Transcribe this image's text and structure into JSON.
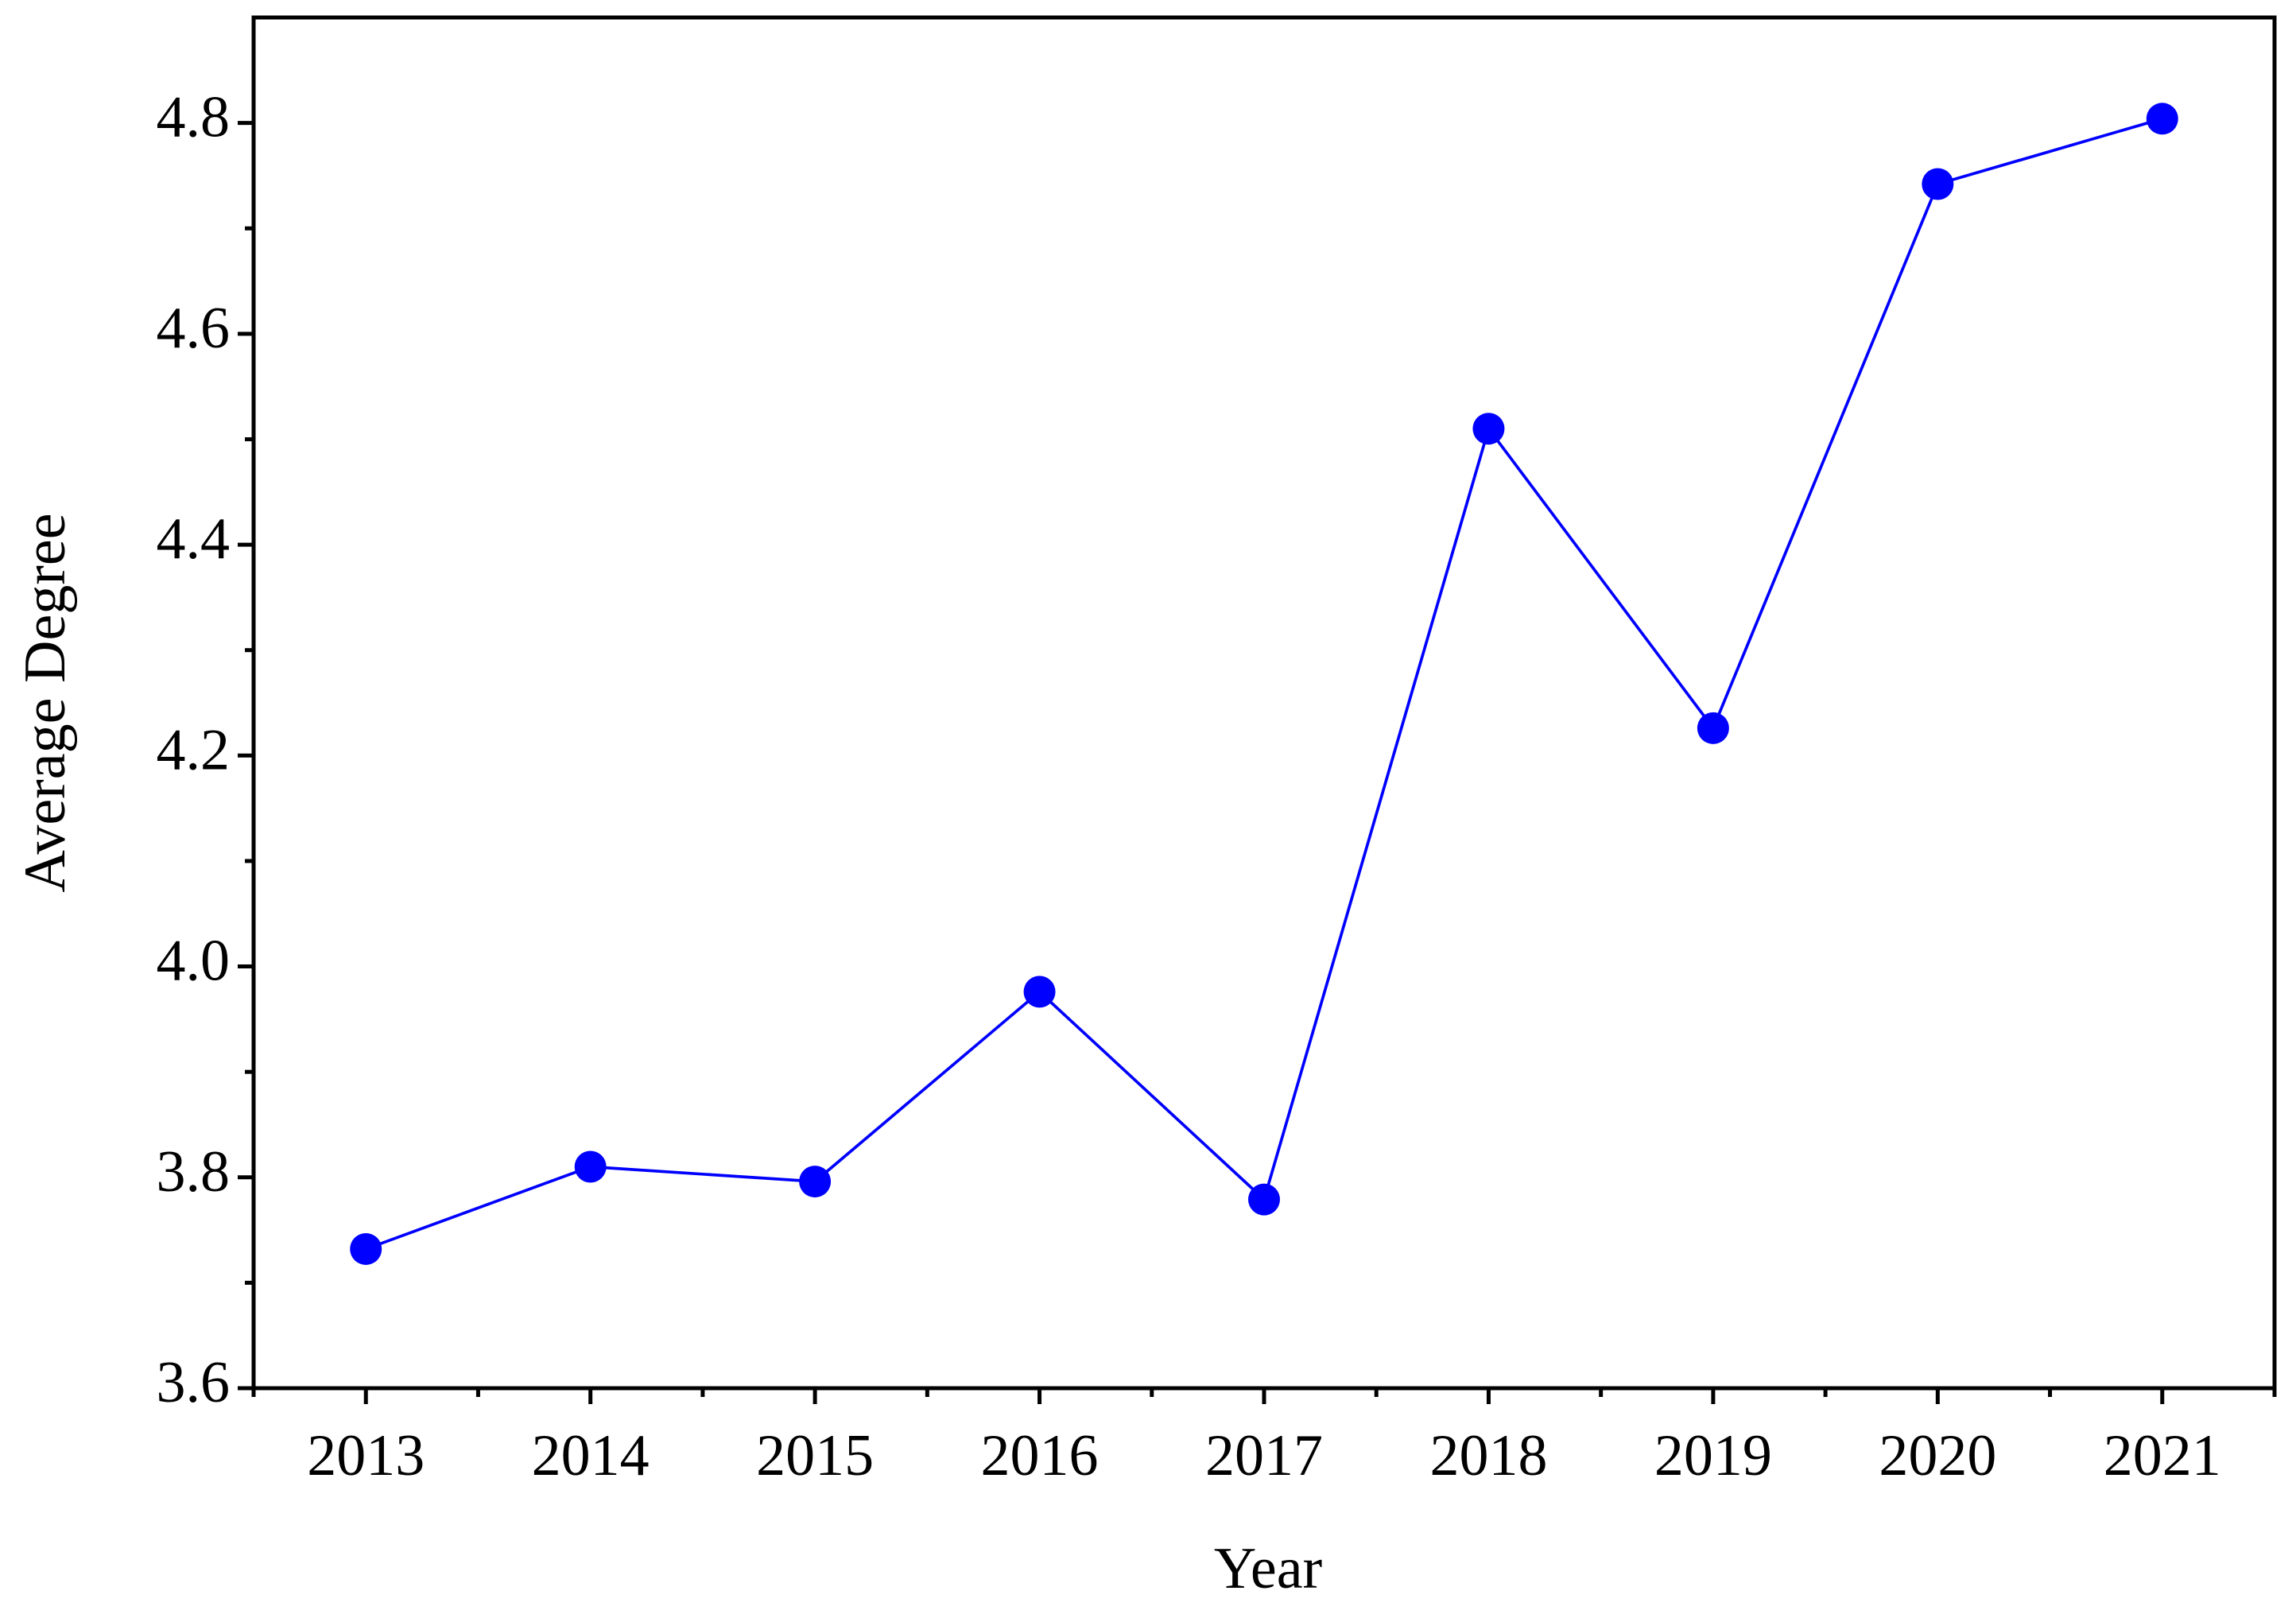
{
  "chart_data": {
    "type": "line",
    "x_label": "Year",
    "y_label": "Average Degree",
    "x": [
      2013,
      2014,
      2015,
      2016,
      2017,
      2018,
      2019,
      2020,
      2021
    ],
    "series": [
      {
        "color": "#0000ff",
        "values": [
          3.732,
          3.81,
          3.796,
          3.976,
          3.779,
          4.51,
          4.226,
          4.742,
          4.804
        ]
      }
    ],
    "xlim": [
      2012.5,
      2021.5
    ],
    "xticks": [
      2013,
      2014,
      2015,
      2016,
      2017,
      2018,
      2019,
      2020,
      2021
    ],
    "ylim": [
      3.6,
      4.9
    ],
    "yticks": [
      3.6,
      3.8,
      {
        "value": 4,
        "label": "4.0"
      },
      4.2,
      4.4,
      4.6,
      4.8
    ],
    "grid": false
  }
}
